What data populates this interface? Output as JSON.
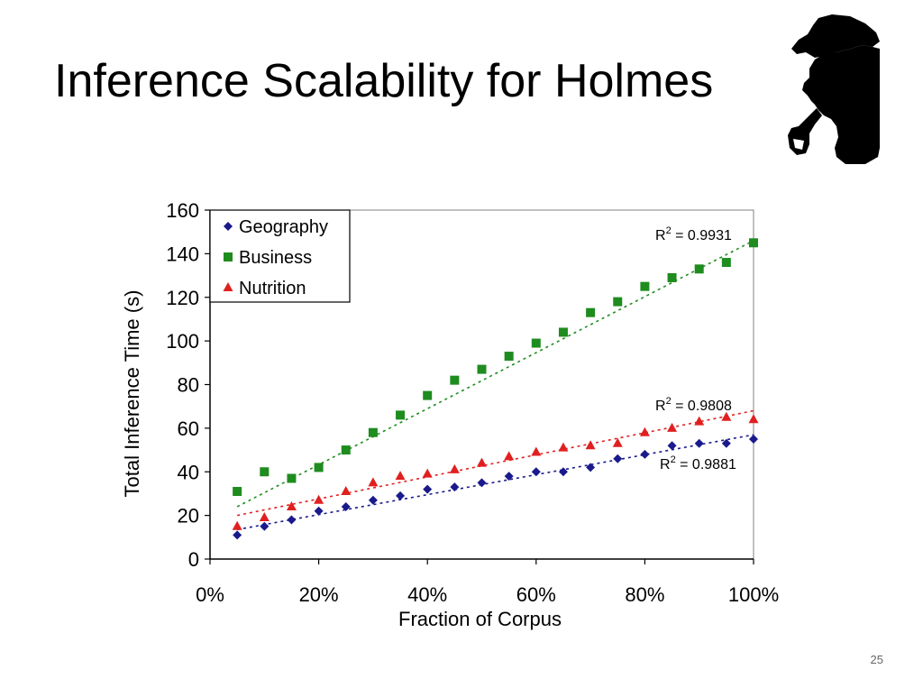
{
  "slide": {
    "title": "Inference Scalability for Holmes",
    "page_number": "25",
    "decoration_icon": "sherlock-holmes-silhouette-icon"
  },
  "chart_data": {
    "type": "scatter",
    "title": "",
    "xlabel": "Fraction of Corpus",
    "ylabel": "Total Inference Time (s)",
    "xlim": [
      0,
      100
    ],
    "ylim": [
      0,
      160
    ],
    "xticks": [
      "0%",
      "20%",
      "40%",
      "60%",
      "80%",
      "100%"
    ],
    "xtick_values": [
      0,
      20,
      40,
      60,
      80,
      100
    ],
    "yticks": [
      "0",
      "20",
      "40",
      "60",
      "80",
      "100",
      "120",
      "140",
      "160"
    ],
    "ytick_values": [
      0,
      20,
      40,
      60,
      80,
      100,
      120,
      140,
      160
    ],
    "grid": false,
    "legend_position": "top-left",
    "x": [
      5,
      10,
      15,
      20,
      25,
      30,
      35,
      40,
      45,
      50,
      55,
      60,
      65,
      70,
      75,
      80,
      85,
      90,
      95,
      100
    ],
    "series": [
      {
        "name": "Geography",
        "marker": "diamond",
        "color": "#1a1a8c",
        "values": [
          11,
          15,
          18,
          22,
          24,
          27,
          29,
          32,
          33,
          35,
          38,
          40,
          40,
          42,
          46,
          48,
          52,
          53,
          53,
          55
        ],
        "trendline": {
          "y_start": 13.5,
          "y_end": 57
        },
        "r2_label": "R",
        "r2_sup": "2",
        "r2_value": " = 0.9881"
      },
      {
        "name": "Business",
        "marker": "square",
        "color": "#1e8c1e",
        "values": [
          31,
          40,
          37,
          42,
          50,
          58,
          66,
          75,
          82,
          87,
          93,
          99,
          104,
          113,
          118,
          125,
          129,
          133,
          136,
          145
        ],
        "trendline": {
          "y_start": 24,
          "y_end": 146
        },
        "r2_label": "R",
        "r2_sup": "2",
        "r2_value": " = 0.9931"
      },
      {
        "name": "Nutrition",
        "marker": "triangle",
        "color": "#e02020",
        "values": [
          15,
          19,
          24,
          27,
          31,
          35,
          38,
          39,
          41,
          44,
          47,
          49,
          51,
          52,
          53,
          58,
          60,
          63,
          65,
          64
        ],
        "trendline": {
          "y_start": 20,
          "y_end": 68
        },
        "r2_label": "R",
        "r2_sup": "2",
        "r2_value": " = 0.9808"
      }
    ]
  }
}
